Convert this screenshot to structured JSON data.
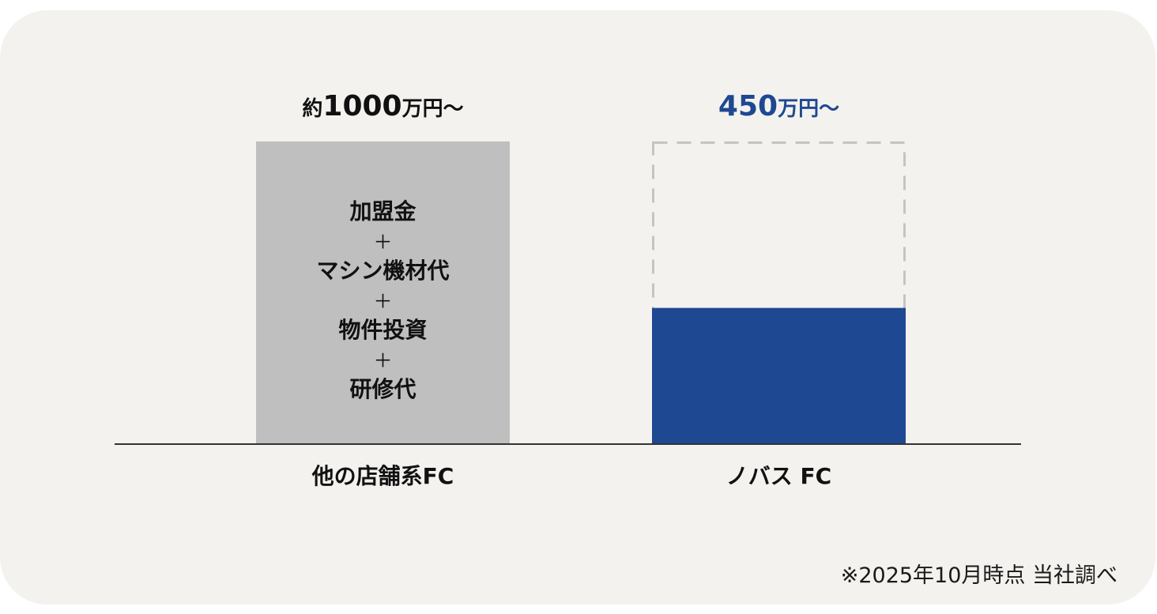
{
  "chart_data": {
    "type": "bar",
    "categories": [
      "他の店舗系FC",
      "ノバス FC"
    ],
    "values": [
      1000,
      450
    ],
    "value_labels": [
      {
        "prefix": "約",
        "number": "1000",
        "unit": "万円〜"
      },
      {
        "prefix": "",
        "number": "450",
        "unit": "万円〜"
      }
    ],
    "bar_inner_text": [
      "加盟金",
      "＋",
      "マシン機材代",
      "＋",
      "物件投資",
      "＋",
      "研修代"
    ],
    "reference_outline_value": 1000,
    "ylim": [
      0,
      1000
    ],
    "colors": {
      "other_bar": "#bfbfbf",
      "novas_bar": "#1f4892",
      "novas_label": "#1f4892",
      "outline_dash": "#c4c4c4",
      "axis": "#333333",
      "text": "#111111"
    },
    "grid": false
  },
  "footnote": "※2025年10月時点 当社調べ"
}
